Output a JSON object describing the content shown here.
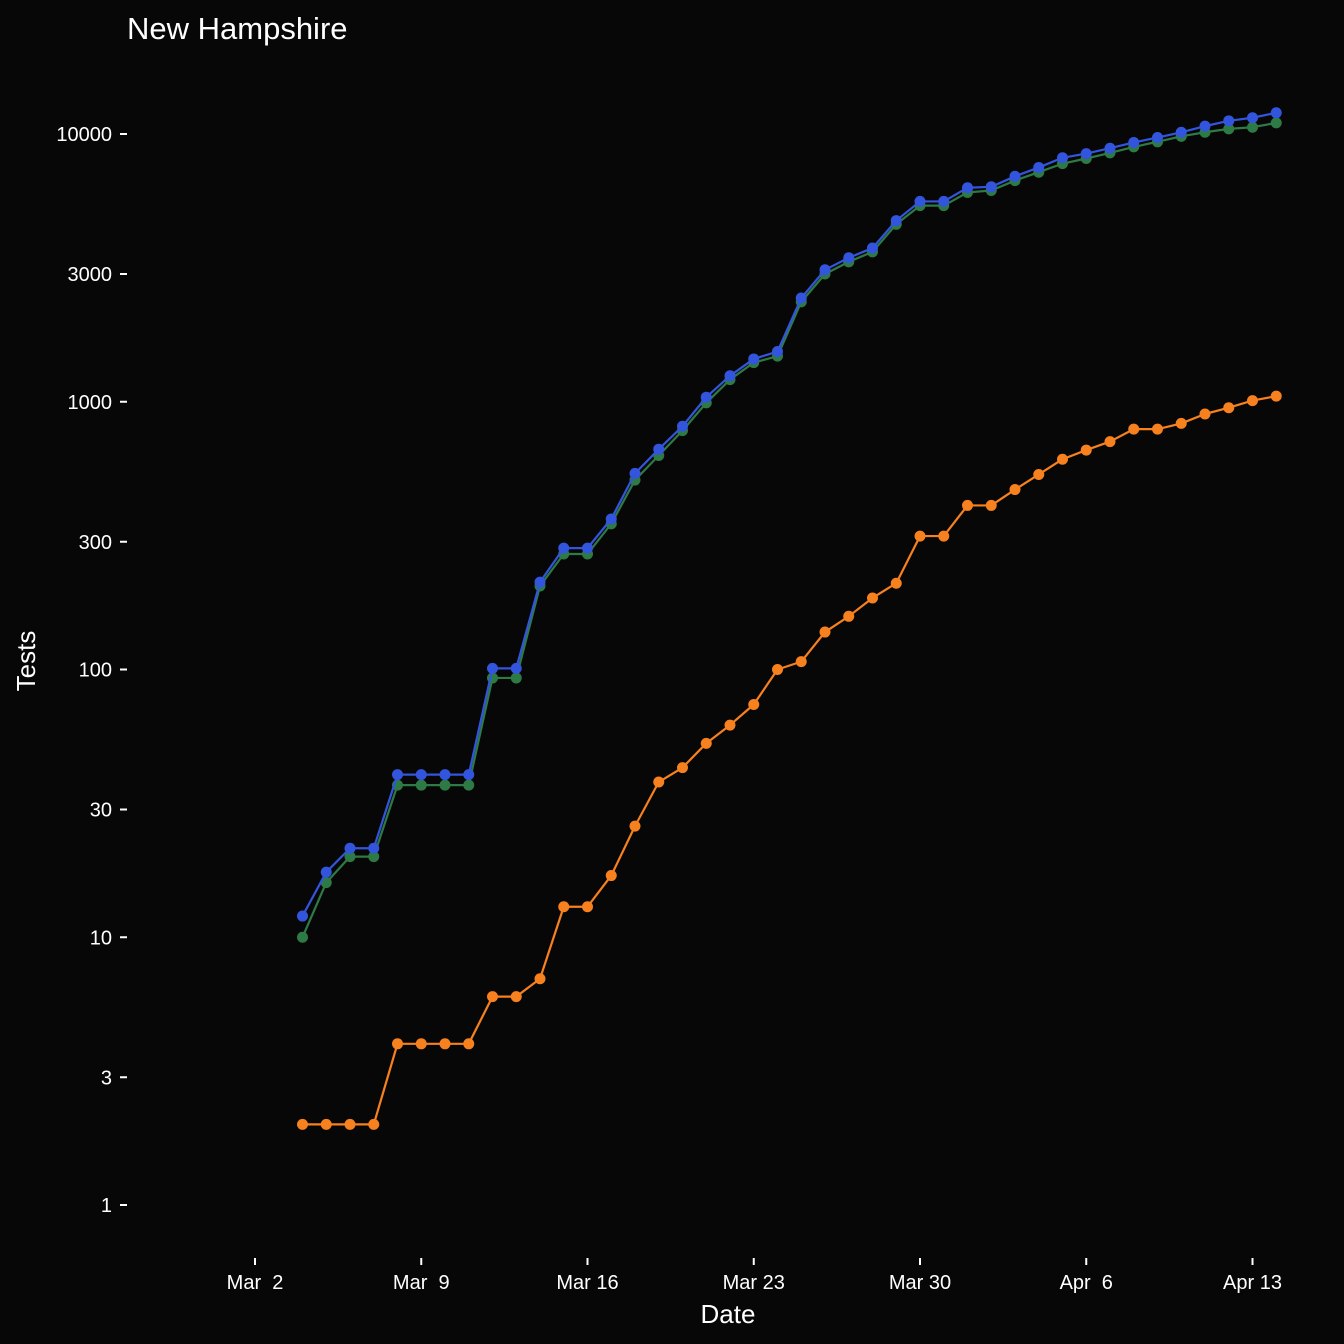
{
  "chart_data": {
    "type": "line",
    "title": "New Hampshire",
    "xlabel": "Date",
    "ylabel": "Tests",
    "yscale": "log",
    "ylim": [
      1,
      12000
    ],
    "y_ticks": [
      1,
      3,
      10,
      30,
      100,
      300,
      1000,
      3000,
      10000
    ],
    "y_tick_labels": [
      "1",
      "3",
      "10",
      "30",
      "100",
      "300",
      "1000",
      "3000",
      "10000"
    ],
    "x_ticks": [
      "2020-03-02",
      "2020-03-09",
      "2020-03-16",
      "2020-03-23",
      "2020-03-30",
      "2020-04-06",
      "2020-04-13"
    ],
    "x_tick_labels": [
      "Mar  2",
      "Mar  9",
      "Mar 16",
      "Mar 23",
      "Mar 30",
      "Apr  6",
      "Apr 13"
    ],
    "xlim": [
      "2020-02-26",
      "2020-04-16"
    ],
    "grid": false,
    "legend": "none",
    "background": "#070707",
    "x": [
      "2020-03-04",
      "2020-03-05",
      "2020-03-06",
      "2020-03-07",
      "2020-03-08",
      "2020-03-09",
      "2020-03-10",
      "2020-03-11",
      "2020-03-12",
      "2020-03-13",
      "2020-03-14",
      "2020-03-15",
      "2020-03-16",
      "2020-03-17",
      "2020-03-18",
      "2020-03-19",
      "2020-03-20",
      "2020-03-21",
      "2020-03-22",
      "2020-03-23",
      "2020-03-24",
      "2020-03-25",
      "2020-03-26",
      "2020-03-27",
      "2020-03-28",
      "2020-03-29",
      "2020-03-30",
      "2020-03-31",
      "2020-04-01",
      "2020-04-02",
      "2020-04-03",
      "2020-04-04",
      "2020-04-05",
      "2020-04-06",
      "2020-04-07",
      "2020-04-08",
      "2020-04-09",
      "2020-04-10",
      "2020-04-11",
      "2020-04-12",
      "2020-04-13",
      "2020-04-14"
    ],
    "series": [
      {
        "color": "#2d7a45",
        "values": [
          10,
          16,
          20,
          20,
          37,
          37,
          37,
          37,
          93,
          93,
          205,
          270,
          270,
          350,
          510,
          630,
          780,
          990,
          1210,
          1400,
          1480,
          2360,
          3000,
          3330,
          3630,
          4600,
          5400,
          5400,
          6050,
          6150,
          6700,
          7200,
          7750,
          8100,
          8500,
          8950,
          9350,
          9800,
          10150,
          10450,
          10600,
          11000
        ]
      },
      {
        "color": "#3355dd",
        "values": [
          12,
          17.5,
          21.5,
          21.5,
          40.5,
          40.5,
          40.5,
          40.5,
          101,
          101,
          212,
          284,
          284,
          365,
          540,
          665,
          810,
          1040,
          1250,
          1445,
          1540,
          2440,
          3110,
          3450,
          3750,
          4750,
          5600,
          5600,
          6300,
          6350,
          6950,
          7500,
          8150,
          8450,
          8850,
          9300,
          9700,
          10150,
          10700,
          11200,
          11500,
          12000
        ]
      },
      {
        "color": "#f7811e",
        "values": [
          2,
          2,
          2,
          2,
          4,
          4,
          4,
          4,
          6,
          6,
          7,
          13,
          13,
          17,
          26,
          38,
          43,
          53,
          62,
          74,
          100,
          107,
          138,
          158,
          185,
          210,
          315,
          315,
          410,
          410,
          470,
          535,
          610,
          660,
          710,
          790,
          790,
          830,
          900,
          950,
          1010,
          1050
        ]
      }
    ]
  }
}
